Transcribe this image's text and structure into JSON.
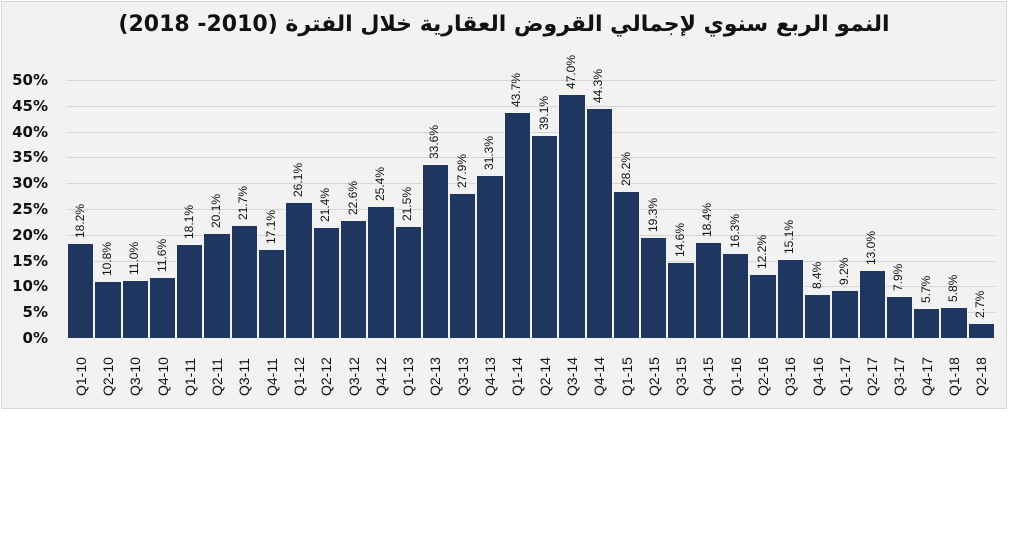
{
  "chart_data": {
    "type": "bar",
    "title": "النمو الربع سنوي لإجمالي القروض العقارية خلال الفترة (2010- 2018)",
    "xlabel": "",
    "ylabel": "",
    "ylim": [
      0,
      50
    ],
    "y_ticks": [
      "0%",
      "5%",
      "10%",
      "15%",
      "20%",
      "25%",
      "30%",
      "35%",
      "40%",
      "45%",
      "50%"
    ],
    "grid": true,
    "legend": null,
    "bar_color": "#1f3660",
    "background_color": "#f2f2f2",
    "categories": [
      "Q1-10",
      "Q2-10",
      "Q3-10",
      "Q4-10",
      "Q1-11",
      "Q2-11",
      "Q3-11",
      "Q4-11",
      "Q1-12",
      "Q2-12",
      "Q3-12",
      "Q4-12",
      "Q1-13",
      "Q2-13",
      "Q3-13",
      "Q4-13",
      "Q1-14",
      "Q2-14",
      "Q3-14",
      "Q4-14",
      "Q1-15",
      "Q2-15",
      "Q3-15",
      "Q4-15",
      "Q1-16",
      "Q2-16",
      "Q3-16",
      "Q4-16",
      "Q1-17",
      "Q2-17",
      "Q3-17",
      "Q4-17",
      "Q1-18",
      "Q2-18"
    ],
    "values": [
      18.2,
      10.8,
      11.0,
      11.6,
      18.1,
      20.1,
      21.7,
      17.1,
      26.1,
      21.4,
      22.6,
      25.4,
      21.5,
      33.6,
      27.9,
      31.3,
      43.7,
      39.1,
      47.0,
      44.3,
      28.2,
      19.3,
      14.6,
      18.4,
      16.3,
      12.2,
      15.1,
      8.4,
      9.2,
      13.0,
      7.9,
      5.7,
      5.8,
      2.7
    ],
    "value_labels": [
      "18.2%",
      "10.8%",
      "11.0%",
      "11.6%",
      "18.1%",
      "20.1%",
      "21.7%",
      "17.1%",
      "26.1%",
      "21.4%",
      "22.6%",
      "25.4%",
      "21.5%",
      "33.6%",
      "27.9%",
      "31.3%",
      "43.7%",
      "39.1%",
      "47.0%",
      "44.3%",
      "28.2%",
      "19.3%",
      "14.6%",
      "18.4%",
      "16.3%",
      "12.2%",
      "15.1%",
      "8.4%",
      "9.2%",
      "13.0%",
      "7.9%",
      "5.7%",
      "5.8%",
      "2.7%"
    ]
  }
}
